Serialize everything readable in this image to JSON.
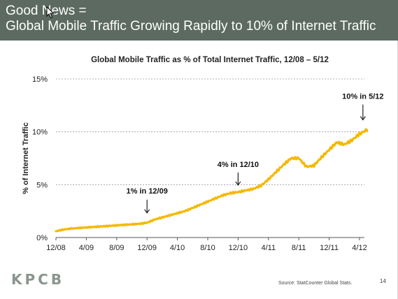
{
  "banner": {
    "line1": "Good News =",
    "line2": "Global Mobile Traffic Growing Rapidly to 10% of Internet Traffic"
  },
  "colors": {
    "banner_bg": "#5c6a61",
    "series": "#f5b800",
    "grid": "#9a9a9a",
    "logo": "#8a968d"
  },
  "chart_data": {
    "type": "line",
    "title": "Global Mobile Traffic as % of Total Internet Traffic, 12/08 – 5/12",
    "ylabel": "% of Internet Traffic",
    "xlabel": "",
    "ylim": [
      0,
      15
    ],
    "xlim": [
      "12/08",
      "5/12"
    ],
    "y_ticks": [
      0,
      5,
      10,
      15
    ],
    "y_tick_labels": [
      "0%",
      "5%",
      "10%",
      "15%"
    ],
    "x_ticks": [
      "12/08",
      "4/09",
      "8/09",
      "12/09",
      "4/10",
      "8/10",
      "12/10",
      "4/11",
      "8/11",
      "12/11",
      "4/12"
    ],
    "grid": "horizontal dashed",
    "series": [
      {
        "values_x": [
          "12/08",
          "1/09",
          "2/09",
          "3/09",
          "4/09",
          "5/09",
          "6/09",
          "7/09",
          "8/09",
          "9/09",
          "10/09",
          "11/09",
          "12/09",
          "1/10",
          "2/10",
          "3/10",
          "4/10",
          "5/10",
          "6/10",
          "7/10",
          "8/10",
          "9/10",
          "10/10",
          "11/10",
          "12/10",
          "1/11",
          "2/11",
          "3/11",
          "4/11",
          "5/11",
          "6/11",
          "7/11",
          "8/11",
          "9/11",
          "10/11",
          "11/11",
          "12/11",
          "1/12",
          "2/12",
          "3/12",
          "4/12",
          "5/12"
        ],
        "values": [
          0.6,
          0.75,
          0.85,
          0.9,
          0.95,
          1.0,
          1.05,
          1.1,
          1.15,
          1.2,
          1.25,
          1.3,
          1.4,
          1.7,
          1.9,
          2.1,
          2.3,
          2.5,
          2.8,
          3.1,
          3.4,
          3.7,
          4.0,
          4.2,
          4.3,
          4.45,
          4.6,
          4.9,
          5.5,
          6.2,
          6.9,
          7.5,
          7.5,
          6.7,
          6.8,
          7.6,
          8.3,
          9.0,
          8.8,
          9.2,
          9.8,
          10.2
        ]
      }
    ],
    "annotations": [
      {
        "text": "1% in 12/09",
        "x": "12/09",
        "y": 1.4
      },
      {
        "text": "4% in 12/10",
        "x": "12/10",
        "y": 4.3
      },
      {
        "text": "10% in 5/12",
        "x": "5/12",
        "y": 10.2
      }
    ]
  },
  "footer": {
    "logo": "KPCB",
    "source": "Source: StatCounter Global Stats.",
    "page": "14"
  }
}
